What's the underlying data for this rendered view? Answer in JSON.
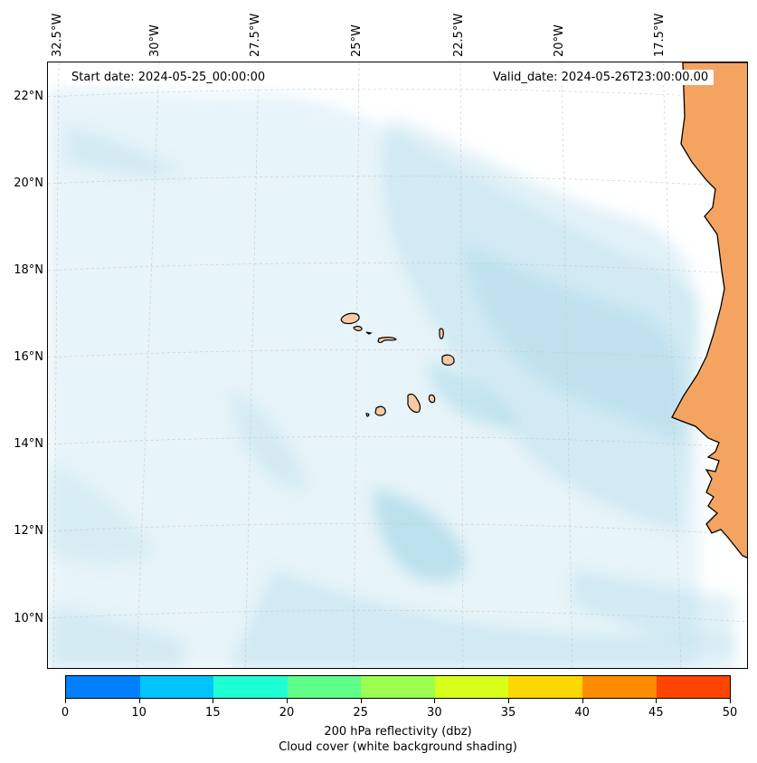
{
  "map": {
    "start_date": "Start date: 2024-05-25_00:00:00",
    "valid_date": "Valid_date: 2024-05-26T23:00:00.00",
    "lon_labels": [
      "32.5°W",
      "30°W",
      "27.5°W",
      "25°W",
      "22.5°W",
      "20°W",
      "17.5°W"
    ],
    "lat_labels": [
      "22°N",
      "20°N",
      "18°N",
      "16°N",
      "14°N",
      "12°N",
      "10°N"
    ],
    "land_color": "#f4a460",
    "island_color": "#f9c9a3",
    "cloud_color": "#a8d8e8",
    "gridlines": true
  },
  "colorbar": {
    "ticks": [
      "0",
      "10",
      "15",
      "20",
      "25",
      "30",
      "35",
      "40",
      "45",
      "50"
    ],
    "colors": [
      "#0080ff",
      "#00c4ff",
      "#1effd4",
      "#60ff8a",
      "#9cff50",
      "#d8ff1a",
      "#ffd700",
      "#ff8c00",
      "#ff4500"
    ],
    "label": "200 hPa reflectivity (dbz)",
    "sublabel": "Cloud cover (white background shading)"
  }
}
